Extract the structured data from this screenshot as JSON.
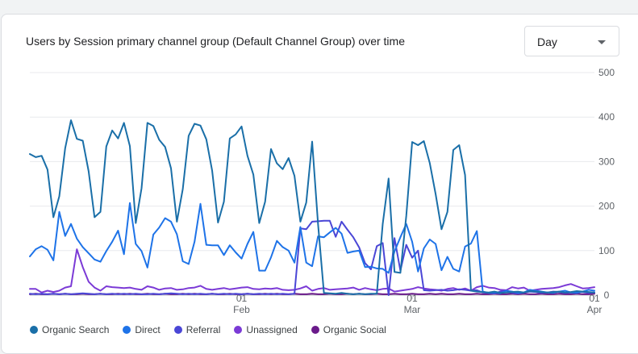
{
  "header": {
    "title": "Users by Session primary channel group (Default Channel Group) over time",
    "dropdown_value": "Day"
  },
  "colors": {
    "Organic Search": "#1a6fa8",
    "Direct": "#1e73e8",
    "Referral": "#4a46d6",
    "Unassigned": "#7b3ad6",
    "Organic Social": "#6a1a8a"
  },
  "chart_data": {
    "type": "line",
    "title": "Users by Session primary channel group (Default Channel Group) over time",
    "xlabel": "",
    "ylabel": "",
    "ylim": [
      0,
      500
    ],
    "y_ticks": [
      0,
      100,
      200,
      300,
      400,
      500
    ],
    "x_ticks": [
      {
        "day": 37,
        "line1": "01",
        "line2": "Feb"
      },
      {
        "day": 66,
        "line1": "01",
        "line2": "Mar"
      },
      {
        "day": 97,
        "line1": "01",
        "line2": "Apr"
      }
    ],
    "x_range": [
      1,
      97
    ],
    "legend": [
      "Organic Search",
      "Direct",
      "Referral",
      "Unassigned",
      "Organic Social"
    ],
    "series": [
      {
        "name": "Organic Search",
        "values": [
          317,
          310,
          313,
          282,
          175,
          222,
          330,
          393,
          351,
          347,
          278,
          175,
          187,
          334,
          370,
          352,
          387,
          335,
          162,
          240,
          387,
          380,
          349,
          333,
          285,
          165,
          238,
          358,
          385,
          381,
          350,
          280,
          163,
          210,
          352,
          361,
          379,
          313,
          271,
          162,
          210,
          328,
          296,
          283,
          308,
          268,
          165,
          208,
          345,
          160,
          5,
          4,
          3,
          5,
          3,
          2,
          3,
          2,
          3,
          3,
          160,
          262,
          52,
          50,
          178,
          344,
          337,
          346,
          297,
          227,
          148,
          187,
          326,
          337,
          270,
          10,
          8,
          7,
          6,
          8,
          5,
          6,
          7,
          8,
          6,
          9,
          8,
          7,
          6,
          7,
          8,
          6,
          7,
          9,
          8,
          7,
          6
        ]
      },
      {
        "name": "Direct",
        "values": [
          87,
          103,
          110,
          102,
          78,
          187,
          133,
          160,
          127,
          108,
          94,
          80,
          75,
          99,
          120,
          145,
          92,
          207,
          115,
          99,
          62,
          136,
          152,
          173,
          165,
          137,
          76,
          70,
          120,
          205,
          113,
          112,
          112,
          90,
          112,
          96,
          82,
          115,
          142,
          55,
          55,
          85,
          122,
          108,
          100,
          73,
          153,
          73,
          65,
          132,
          130,
          141,
          151,
          138,
          95,
          98,
          100,
          63,
          64,
          60,
          59,
          50,
          98,
          130,
          160,
          120,
          53,
          105,
          125,
          115,
          56,
          86,
          59,
          53,
          109,
          116,
          144,
          8,
          5,
          6,
          4,
          10,
          8,
          5,
          6,
          12,
          10,
          8,
          6,
          5,
          8,
          10,
          6,
          5,
          8,
          12,
          10
        ]
      },
      {
        "name": "Referral",
        "values": [
          3,
          2,
          3,
          2,
          3,
          2,
          3,
          2,
          3,
          4,
          3,
          2,
          3,
          2,
          3,
          2,
          3,
          2,
          3,
          2,
          2,
          3,
          2,
          3,
          4,
          3,
          2,
          3,
          2,
          3,
          2,
          3,
          2,
          3,
          2,
          3,
          2,
          3,
          2,
          3,
          2,
          3,
          2,
          3,
          2,
          3,
          150,
          148,
          165,
          166,
          167,
          167,
          131,
          165,
          147,
          130,
          107,
          72,
          58,
          110,
          117,
          0,
          128,
          55,
          113,
          84,
          100,
          11,
          10,
          11,
          12,
          10,
          11,
          13,
          12,
          10,
          11,
          6,
          5,
          4,
          8,
          10,
          5,
          4,
          6,
          8,
          7,
          5,
          6,
          8,
          7,
          5,
          6,
          8,
          7,
          5,
          6
        ]
      },
      {
        "name": "Unassigned",
        "values": [
          14,
          14,
          6,
          10,
          7,
          10,
          17,
          20,
          103,
          63,
          30,
          17,
          10,
          20,
          18,
          17,
          16,
          17,
          14,
          12,
          20,
          17,
          12,
          15,
          16,
          12,
          13,
          16,
          17,
          21,
          14,
          12,
          14,
          16,
          13,
          15,
          17,
          18,
          14,
          13,
          15,
          14,
          16,
          12,
          11,
          12,
          15,
          20,
          10,
          14,
          16,
          12,
          13,
          14,
          15,
          17,
          12,
          16,
          13,
          11,
          14,
          15,
          8,
          10,
          12,
          14,
          18,
          15,
          13,
          12,
          10,
          14,
          16,
          12,
          15,
          10,
          18,
          21,
          17,
          16,
          12,
          11,
          18,
          15,
          17,
          10,
          12,
          14,
          15,
          16,
          18,
          22,
          25,
          20,
          15,
          16,
          18
        ]
      },
      {
        "name": "Organic Social",
        "values": [
          2,
          3,
          2,
          2,
          3,
          2,
          3,
          2,
          2,
          3,
          2,
          2,
          3,
          2,
          2,
          3,
          2,
          3,
          2,
          2,
          3,
          2,
          2,
          3,
          2,
          2,
          3,
          2,
          3,
          2,
          2,
          3,
          2,
          2,
          3,
          2,
          2,
          3,
          2,
          2,
          3,
          2,
          3,
          2,
          2,
          3,
          2,
          2,
          3,
          2,
          2,
          3,
          2,
          2,
          3,
          2,
          3,
          2,
          2,
          3,
          2,
          2,
          3,
          2,
          2,
          3,
          2,
          2,
          3,
          2,
          3,
          2,
          2,
          3,
          2,
          2,
          3,
          2,
          2,
          3,
          2,
          2,
          3,
          2,
          3,
          2,
          2,
          3,
          2,
          2,
          3,
          2,
          2,
          3,
          2,
          2,
          3
        ]
      }
    ]
  }
}
